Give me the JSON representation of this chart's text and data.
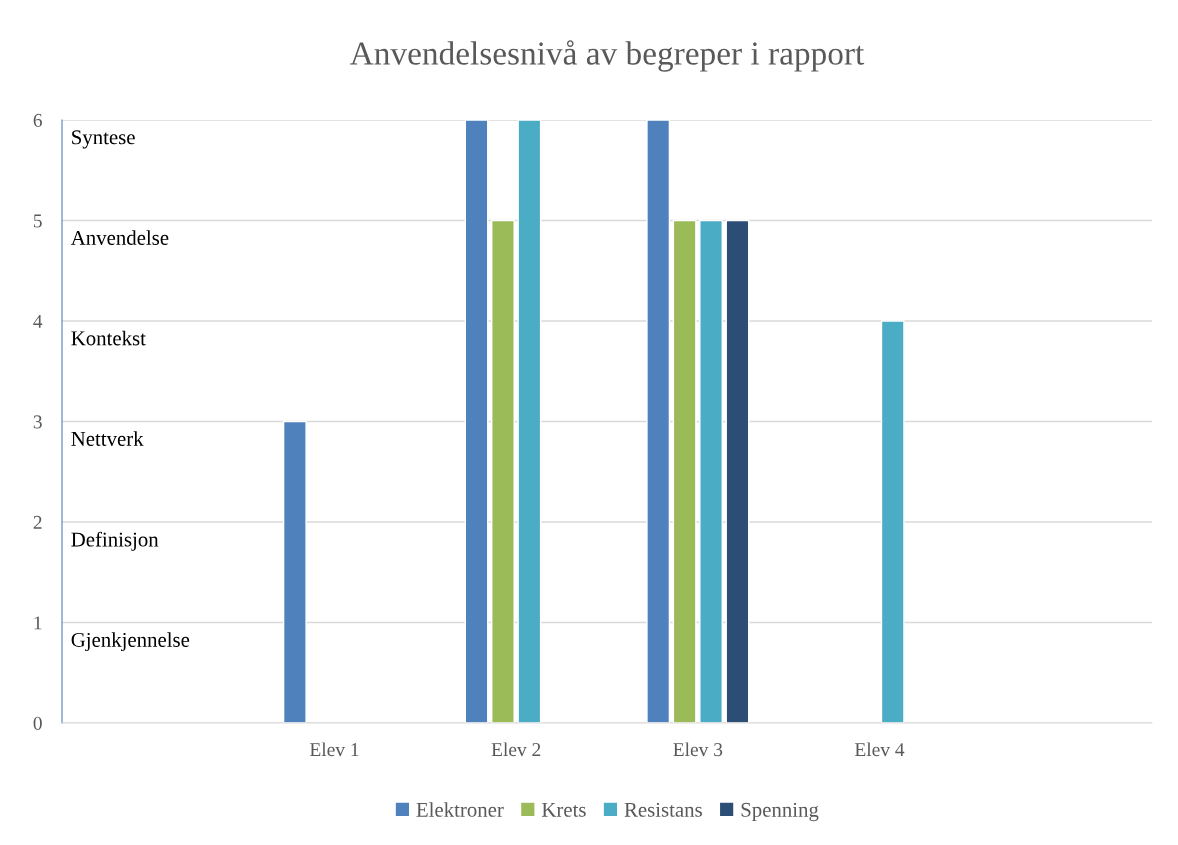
{
  "chart_data": {
    "type": "bar",
    "title": "Anvendelsesnivå av begreper i rapport",
    "categories": [
      null,
      "Elev 1",
      "Elev 2",
      "Elev 3",
      "Elev 4",
      null
    ],
    "series": [
      {
        "name": "Elektroner",
        "color": "#4f81bd",
        "values": [
          null,
          3,
          6,
          6,
          null,
          null
        ]
      },
      {
        "name": "Krets",
        "color": "#9bbb59",
        "values": [
          null,
          null,
          5,
          5,
          null,
          null
        ]
      },
      {
        "name": "Resistans",
        "color": "#4bacc6",
        "values": [
          null,
          null,
          6,
          5,
          4,
          null
        ]
      },
      {
        "name": "Spenning",
        "color": "#2c4d75",
        "values": [
          null,
          null,
          null,
          5,
          null,
          null
        ]
      }
    ],
    "ylim": [
      0,
      6
    ],
    "yticks": [
      0,
      1,
      2,
      3,
      4,
      5,
      6
    ],
    "grid": "y",
    "legend": "bottom",
    "annotations": [
      "Syntese",
      "Anvendelse",
      "Kontekst",
      "Nettverk",
      "Definisjon",
      "Gjenkjennelse"
    ]
  }
}
